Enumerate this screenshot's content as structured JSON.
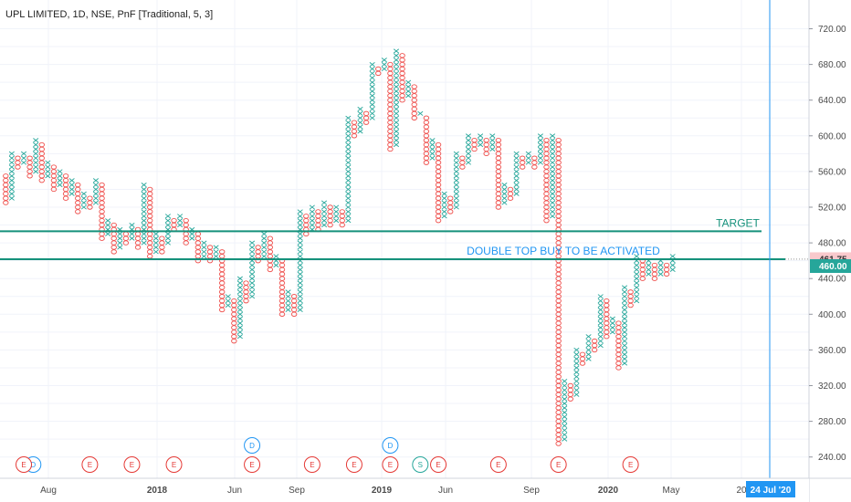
{
  "header": {
    "title": "UPL LIMITED, 1D, NSE, PnF [Traditional, 5, 3]"
  },
  "chart_data": {
    "type": "point-and-figure",
    "title": "UPL LIMITED, 1D, NSE, PnF [Traditional, 5, 3]",
    "box_size": 5,
    "reversal": 3,
    "ylim": [
      220,
      740
    ],
    "y_ticks": [
      "240.00",
      "280.00",
      "320.00",
      "360.00",
      "400.00",
      "440.00",
      "480.00",
      "520.00",
      "560.00",
      "600.00",
      "640.00",
      "680.00",
      "720.00"
    ],
    "x_ticks": [
      "Aug",
      "2018",
      "Jun",
      "Sep",
      "2019",
      "Jun",
      "Sep",
      "2020",
      "May",
      "20"
    ],
    "columns": [
      {
        "t": "O",
        "low": 525,
        "high": 555
      },
      {
        "t": "X",
        "low": 530,
        "high": 580
      },
      {
        "t": "O",
        "low": 565,
        "high": 575
      },
      {
        "t": "X",
        "low": 570,
        "high": 580
      },
      {
        "t": "O",
        "low": 555,
        "high": 575
      },
      {
        "t": "X",
        "low": 560,
        "high": 595
      },
      {
        "t": "O",
        "low": 550,
        "high": 590
      },
      {
        "t": "X",
        "low": 555,
        "high": 570
      },
      {
        "t": "O",
        "low": 540,
        "high": 565
      },
      {
        "t": "X",
        "low": 545,
        "high": 560
      },
      {
        "t": "O",
        "low": 530,
        "high": 555
      },
      {
        "t": "X",
        "low": 535,
        "high": 550
      },
      {
        "t": "O",
        "low": 515,
        "high": 545
      },
      {
        "t": "X",
        "low": 520,
        "high": 535
      },
      {
        "t": "O",
        "low": 520,
        "high": 530
      },
      {
        "t": "X",
        "low": 525,
        "high": 550
      },
      {
        "t": "O",
        "low": 485,
        "high": 545
      },
      {
        "t": "X",
        "low": 490,
        "high": 505
      },
      {
        "t": "O",
        "low": 470,
        "high": 500
      },
      {
        "t": "X",
        "low": 475,
        "high": 495
      },
      {
        "t": "O",
        "low": 480,
        "high": 490
      },
      {
        "t": "X",
        "low": 485,
        "high": 500
      },
      {
        "t": "O",
        "low": 475,
        "high": 495
      },
      {
        "t": "X",
        "low": 480,
        "high": 545
      },
      {
        "t": "O",
        "low": 465,
        "high": 540
      },
      {
        "t": "X",
        "low": 470,
        "high": 490
      },
      {
        "t": "O",
        "low": 470,
        "high": 485
      },
      {
        "t": "X",
        "low": 480,
        "high": 510
      },
      {
        "t": "O",
        "low": 495,
        "high": 505
      },
      {
        "t": "X",
        "low": 500,
        "high": 510
      },
      {
        "t": "O",
        "low": 480,
        "high": 505
      },
      {
        "t": "X",
        "low": 485,
        "high": 495
      },
      {
        "t": "O",
        "low": 460,
        "high": 490
      },
      {
        "t": "X",
        "low": 465,
        "high": 480
      },
      {
        "t": "O",
        "low": 460,
        "high": 475
      },
      {
        "t": "X",
        "low": 465,
        "high": 475
      },
      {
        "t": "O",
        "low": 405,
        "high": 470
      },
      {
        "t": "X",
        "low": 410,
        "high": 420
      },
      {
        "t": "O",
        "low": 370,
        "high": 415
      },
      {
        "t": "X",
        "low": 375,
        "high": 440
      },
      {
        "t": "O",
        "low": 415,
        "high": 435
      },
      {
        "t": "X",
        "low": 420,
        "high": 480
      },
      {
        "t": "O",
        "low": 460,
        "high": 475
      },
      {
        "t": "X",
        "low": 465,
        "high": 490
      },
      {
        "t": "O",
        "low": 450,
        "high": 485
      },
      {
        "t": "X",
        "low": 455,
        "high": 465
      },
      {
        "t": "O",
        "low": 400,
        "high": 460
      },
      {
        "t": "X",
        "low": 405,
        "high": 425
      },
      {
        "t": "O",
        "low": 400,
        "high": 420
      },
      {
        "t": "X",
        "low": 405,
        "high": 515
      },
      {
        "t": "O",
        "low": 490,
        "high": 510
      },
      {
        "t": "X",
        "low": 495,
        "high": 520
      },
      {
        "t": "O",
        "low": 495,
        "high": 515
      },
      {
        "t": "X",
        "low": 500,
        "high": 525
      },
      {
        "t": "O",
        "low": 500,
        "high": 520
      },
      {
        "t": "X",
        "low": 505,
        "high": 520
      },
      {
        "t": "O",
        "low": 500,
        "high": 515
      },
      {
        "t": "X",
        "low": 505,
        "high": 620
      },
      {
        "t": "O",
        "low": 600,
        "high": 615
      },
      {
        "t": "X",
        "low": 605,
        "high": 630
      },
      {
        "t": "O",
        "low": 615,
        "high": 625
      },
      {
        "t": "X",
        "low": 620,
        "high": 680
      },
      {
        "t": "O",
        "low": 670,
        "high": 675
      },
      {
        "t": "X",
        "low": 675,
        "high": 685
      },
      {
        "t": "O",
        "low": 585,
        "high": 680
      },
      {
        "t": "X",
        "low": 590,
        "high": 695
      },
      {
        "t": "O",
        "low": 640,
        "high": 690
      },
      {
        "t": "X",
        "low": 645,
        "high": 660
      },
      {
        "t": "O",
        "low": 620,
        "high": 655
      },
      {
        "t": "X",
        "low": 625,
        "high": 625
      },
      {
        "t": "O",
        "low": 570,
        "high": 620
      },
      {
        "t": "X",
        "low": 575,
        "high": 595
      },
      {
        "t": "O",
        "low": 505,
        "high": 590
      },
      {
        "t": "X",
        "low": 510,
        "high": 535
      },
      {
        "t": "O",
        "low": 515,
        "high": 530
      },
      {
        "t": "X",
        "low": 520,
        "high": 580
      },
      {
        "t": "O",
        "low": 565,
        "high": 575
      },
      {
        "t": "X",
        "low": 570,
        "high": 600
      },
      {
        "t": "O",
        "low": 585,
        "high": 595
      },
      {
        "t": "X",
        "low": 590,
        "high": 600
      },
      {
        "t": "O",
        "low": 580,
        "high": 595
      },
      {
        "t": "X",
        "low": 585,
        "high": 600
      },
      {
        "t": "O",
        "low": 520,
        "high": 595
      },
      {
        "t": "X",
        "low": 525,
        "high": 545
      },
      {
        "t": "O",
        "low": 530,
        "high": 540
      },
      {
        "t": "X",
        "low": 535,
        "high": 580
      },
      {
        "t": "O",
        "low": 565,
        "high": 575
      },
      {
        "t": "X",
        "low": 570,
        "high": 580
      },
      {
        "t": "O",
        "low": 565,
        "high": 575
      },
      {
        "t": "X",
        "low": 570,
        "high": 600
      },
      {
        "t": "O",
        "low": 505,
        "high": 595
      },
      {
        "t": "X",
        "low": 510,
        "high": 600
      },
      {
        "t": "O",
        "low": 255,
        "high": 595
      },
      {
        "t": "X",
        "low": 260,
        "high": 325
      },
      {
        "t": "O",
        "low": 305,
        "high": 320
      },
      {
        "t": "X",
        "low": 310,
        "high": 360
      },
      {
        "t": "O",
        "low": 345,
        "high": 355
      },
      {
        "t": "X",
        "low": 350,
        "high": 375
      },
      {
        "t": "O",
        "low": 360,
        "high": 370
      },
      {
        "t": "X",
        "low": 365,
        "high": 420
      },
      {
        "t": "O",
        "low": 375,
        "high": 415
      },
      {
        "t": "X",
        "low": 380,
        "high": 395
      },
      {
        "t": "O",
        "low": 340,
        "high": 390
      },
      {
        "t": "X",
        "low": 345,
        "high": 430
      },
      {
        "t": "O",
        "low": 410,
        "high": 425
      },
      {
        "t": "X",
        "low": 415,
        "high": 465
      },
      {
        "t": "O",
        "low": 440,
        "high": 460
      },
      {
        "t": "X",
        "low": 445,
        "high": 460
      },
      {
        "t": "O",
        "low": 440,
        "high": 455
      },
      {
        "t": "X",
        "low": 445,
        "high": 460
      },
      {
        "t": "O",
        "low": 445,
        "high": 455
      },
      {
        "t": "X",
        "low": 450,
        "high": 465
      }
    ],
    "lines": [
      {
        "label": "TARGET",
        "price": 493,
        "color": "#15917b"
      },
      {
        "label": "DOUBLE TOP BUY TO BE ACTIVATED",
        "price": 461.75,
        "color": "#15917b"
      }
    ],
    "price_labels": [
      {
        "value": "461.75",
        "price": 461.75,
        "bg": "#f9c9cc",
        "fg": "#333333"
      },
      {
        "value": "460.00",
        "price": 454,
        "bg": "#26a69a",
        "fg": "#ffffff"
      }
    ],
    "events": [
      {
        "letter": "D",
        "col": 0,
        "row": "bottom",
        "color": "#2196f3"
      },
      {
        "letter": "E",
        "col": 3,
        "row": "bottom",
        "color": "#e53935"
      },
      {
        "letter": "E",
        "col": 14,
        "row": "bottom",
        "color": "#e53935"
      },
      {
        "letter": "E",
        "col": 21,
        "row": "bottom",
        "color": "#e53935"
      },
      {
        "letter": "E",
        "col": 28,
        "row": "bottom",
        "color": "#e53935"
      },
      {
        "letter": "E",
        "col": 41,
        "row": "bottom",
        "color": "#e53935"
      },
      {
        "letter": "D",
        "col": 41,
        "row": "top",
        "color": "#2196f3"
      },
      {
        "letter": "E",
        "col": 51,
        "row": "bottom",
        "color": "#e53935"
      },
      {
        "letter": "E",
        "col": 58,
        "row": "bottom",
        "color": "#e53935"
      },
      {
        "letter": "E",
        "col": 64,
        "row": "bottom",
        "color": "#e53935"
      },
      {
        "letter": "D",
        "col": 64,
        "row": "top",
        "color": "#2196f3"
      },
      {
        "letter": "S",
        "col": 69,
        "row": "bottom",
        "color": "#26a69a"
      },
      {
        "letter": "E",
        "col": 72,
        "row": "bottom",
        "color": "#e53935"
      },
      {
        "letter": "E",
        "col": 82,
        "row": "bottom",
        "color": "#e53935"
      },
      {
        "letter": "E",
        "col": 92,
        "row": "bottom",
        "color": "#e53935"
      },
      {
        "letter": "E",
        "col": 104,
        "row": "bottom",
        "color": "#e53935"
      }
    ],
    "cursor_date": "24 Jul '20",
    "colors": {
      "x": "#26a69a",
      "o": "#ef5350",
      "cursor": "#2196f3"
    }
  }
}
